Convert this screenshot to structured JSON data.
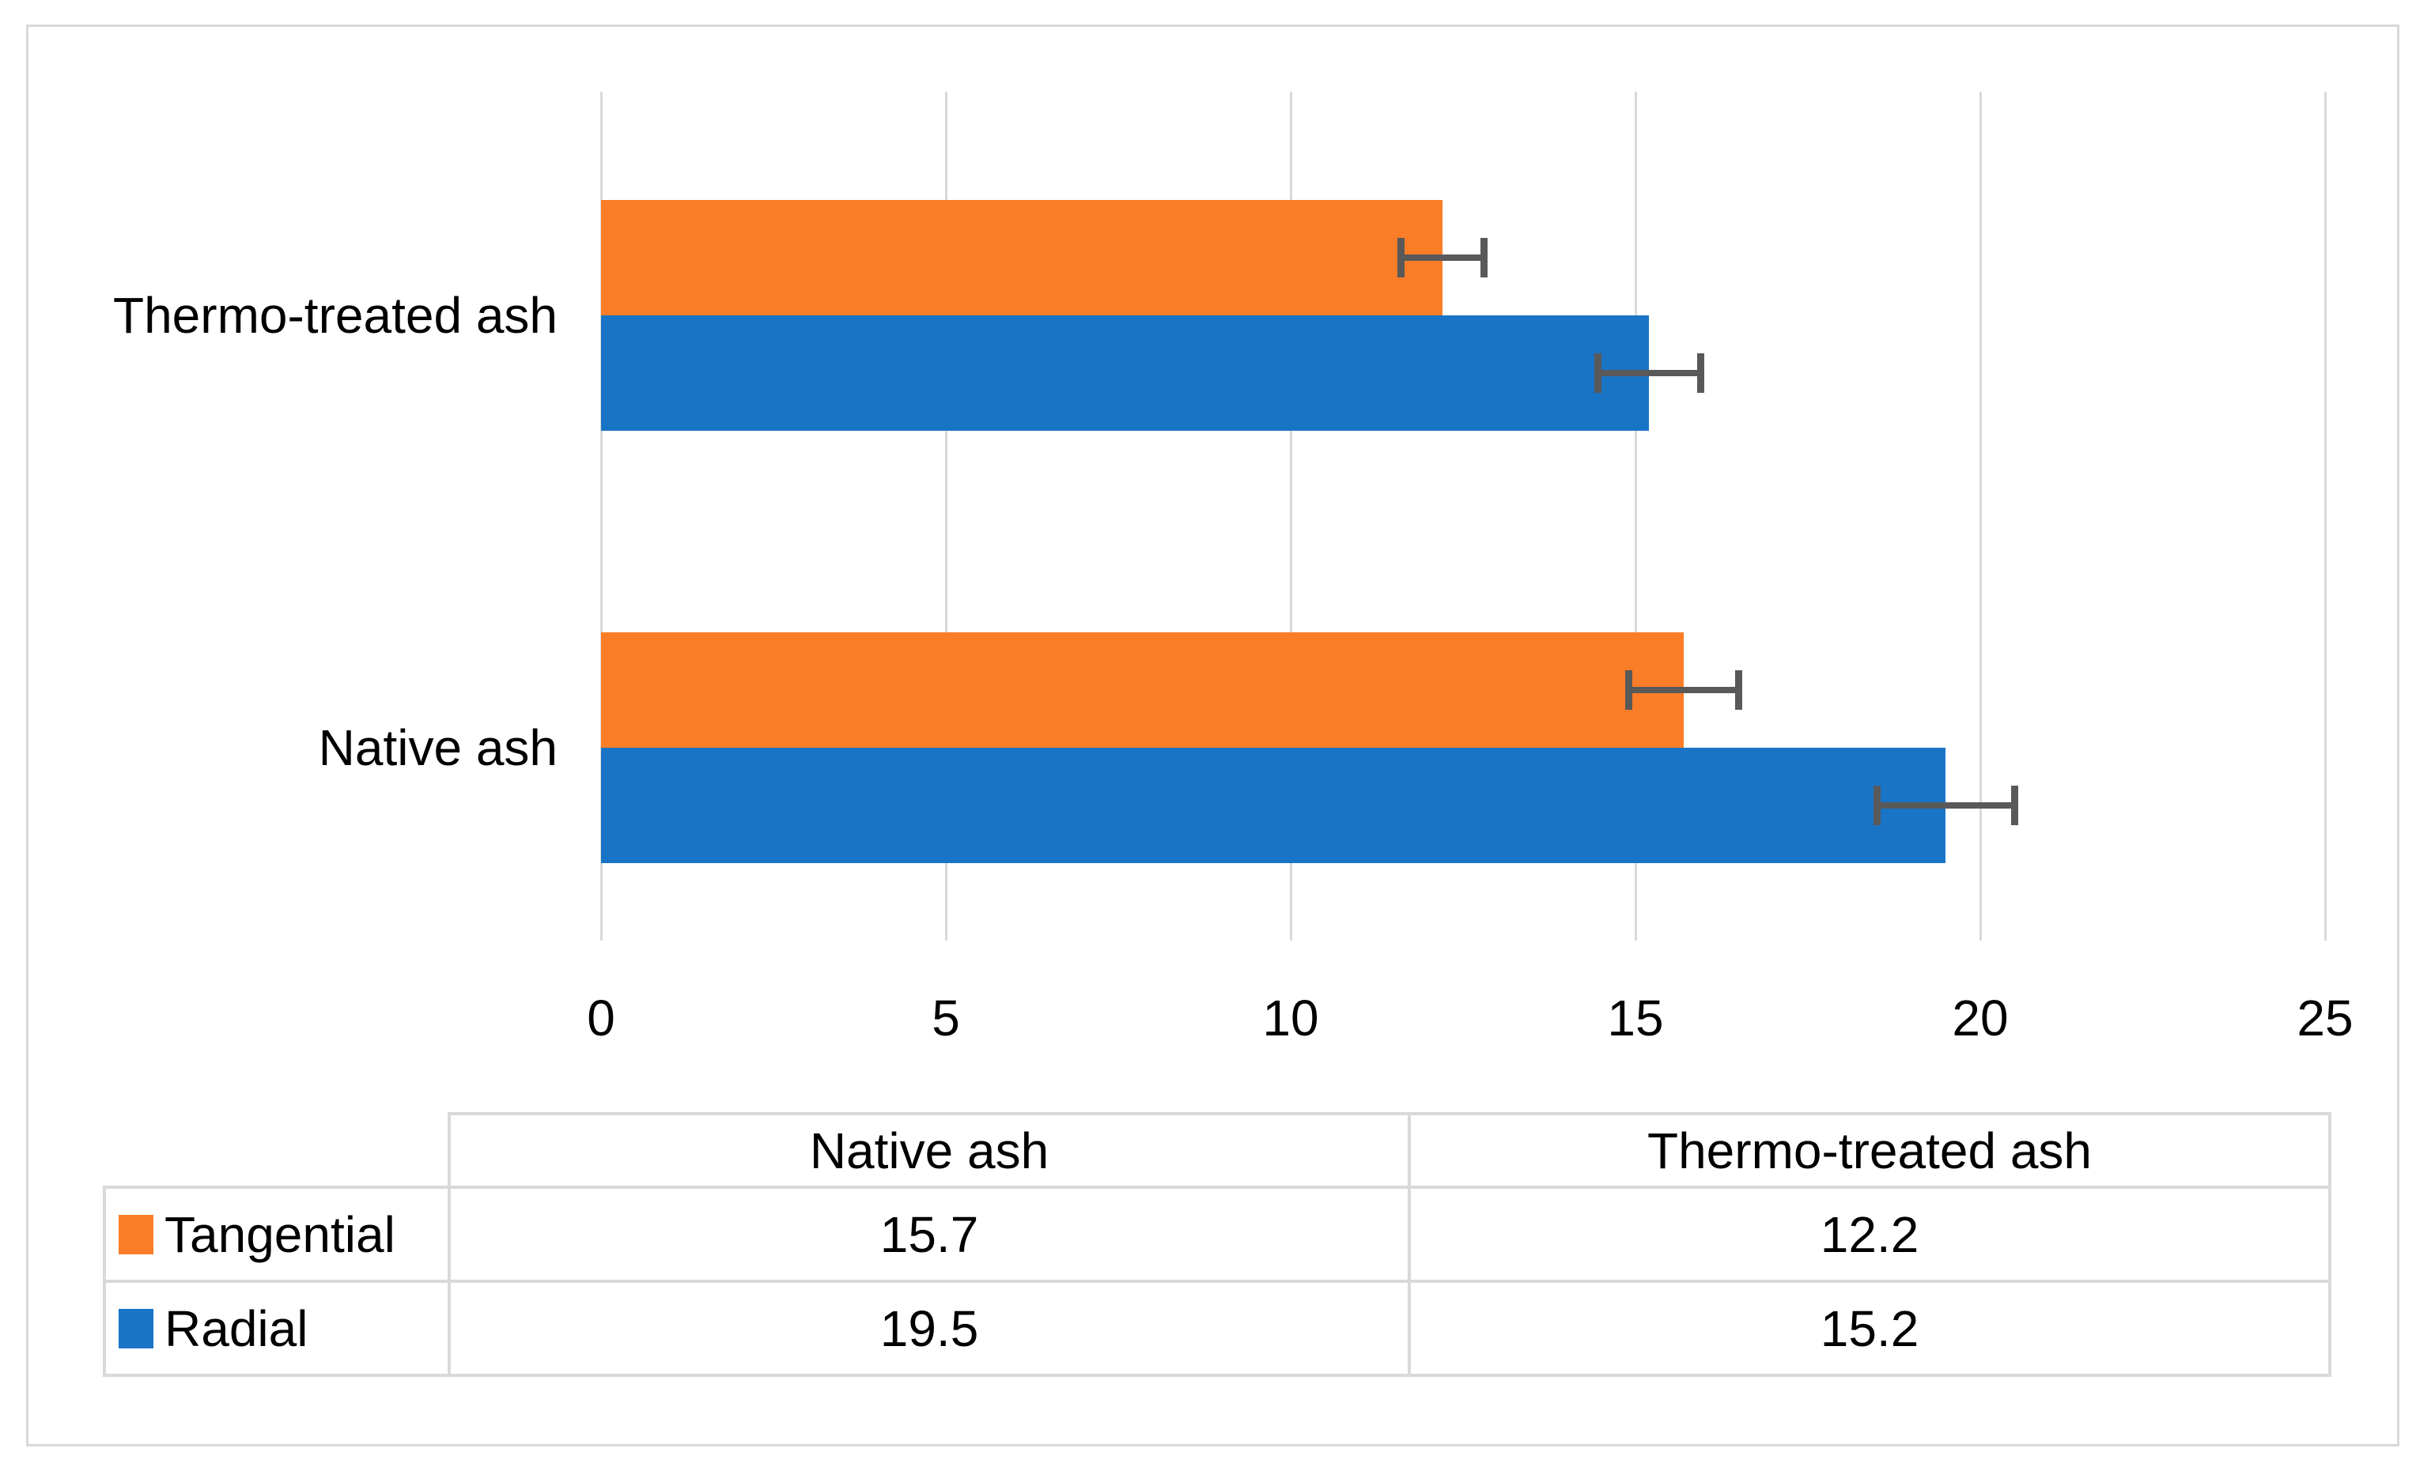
{
  "chart": {
    "title": "",
    "background_color": "#FFFFFF",
    "frame_border_color": "#D9D9D9",
    "gridline_color": "#D9D9D9",
    "error_bar_color": "#595959",
    "text_color": "#000000"
  },
  "chart_data": {
    "type": "bar",
    "orientation": "horizontal",
    "categories": [
      "Thermo-treated ash",
      "Native ash"
    ],
    "series": [
      {
        "name": "Tangential",
        "color": "#FC7D28",
        "values": [
          12.2,
          15.7
        ],
        "errors": [
          0.6,
          0.8
        ]
      },
      {
        "name": "Radial",
        "color": "#1A74C6",
        "values": [
          15.2,
          19.5
        ],
        "errors": [
          0.75,
          1.0
        ]
      }
    ],
    "title": "",
    "xlabel": "",
    "ylabel": "",
    "xlim": [
      0,
      25
    ],
    "x_ticks": [
      0,
      5,
      10,
      15,
      20,
      25
    ],
    "grid": true,
    "error_bars": "both-directions-with-caps",
    "legend_position": "table-bottom"
  },
  "table": {
    "columns": [
      "Native ash",
      "Thermo-treated ash"
    ],
    "rows": [
      {
        "label": "Tangential",
        "key_color": "#FC7D28",
        "values": [
          "15.7",
          "12.2"
        ]
      },
      {
        "label": "Radial",
        "key_color": "#1A74C6",
        "values": [
          "19.5",
          "15.2"
        ]
      }
    ]
  }
}
